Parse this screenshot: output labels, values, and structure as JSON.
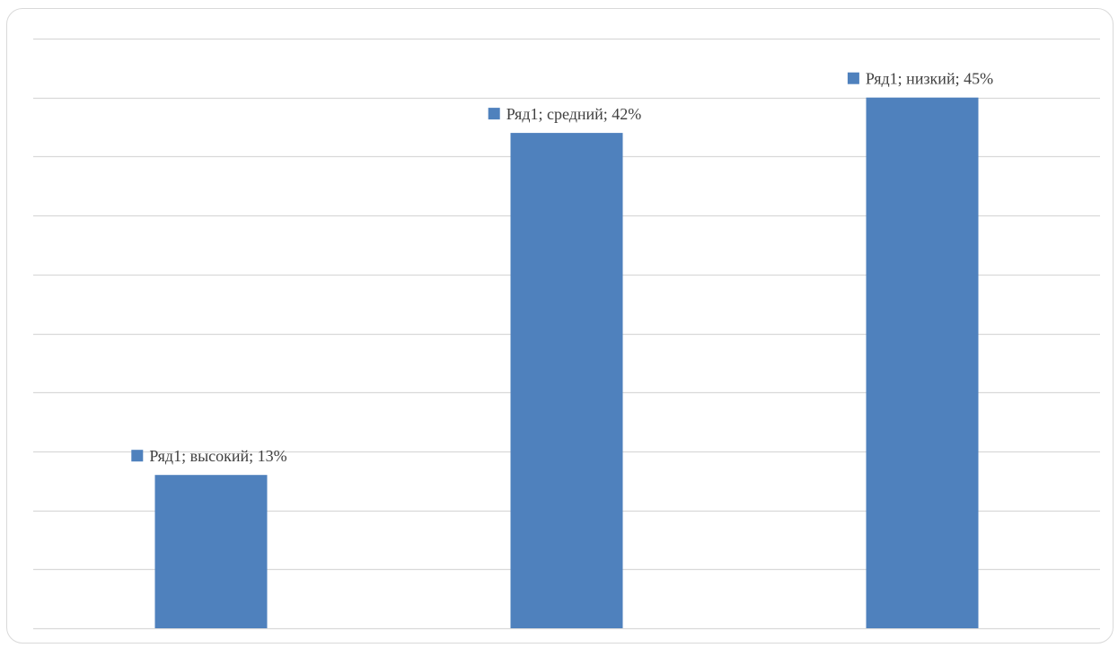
{
  "chart_data": {
    "type": "bar",
    "categories": [
      "высокий",
      "средний",
      "низкий"
    ],
    "series": [
      {
        "name": "Ряд1",
        "values": [
          13,
          42,
          45
        ],
        "color": "#4f81bd"
      }
    ],
    "data_labels": [
      "Ряд1; высокий; 13%",
      "Ряд1; средний; 42%",
      "Ряд1; низкий; 45%"
    ],
    "title": "",
    "xlabel": "",
    "ylabel": "",
    "ylim": [
      0,
      50
    ],
    "y_tick_step": 5,
    "grid": true,
    "axis_tick_labels_shown": false,
    "gridline_color": "#d9d9d9",
    "frame_color": "#d9d9d9",
    "label_color": "#404040"
  }
}
